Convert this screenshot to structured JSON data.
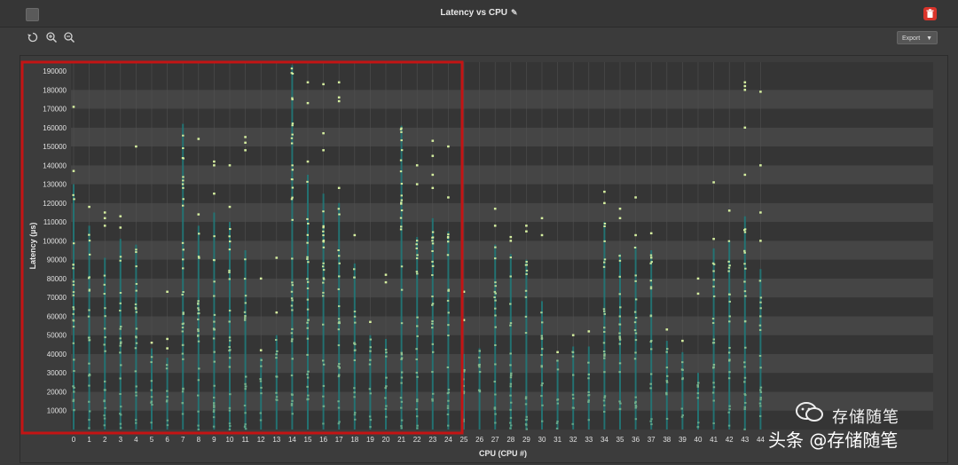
{
  "window": {
    "title": "Latency vs CPU",
    "export_label": "Export"
  },
  "icons": [
    "window-icon",
    "pencil-icon",
    "trash-icon",
    "reset-zoom-icon",
    "zoom-in-icon",
    "zoom-out-icon",
    "caret-down-icon"
  ],
  "colors": {
    "background": "#3b3b3b",
    "plot_band_dark": "#353535",
    "plot_band_light": "#454545",
    "point_low": "#1f7a7a",
    "point_high": "#d6f0a0",
    "highlight_box": "#c41414"
  },
  "watermark": {
    "line1": "存储随笔",
    "line2": "头条 @存储随笔"
  },
  "chart_data": {
    "type": "scatter",
    "xlabel": "CPU (CPU #)",
    "ylabel": "Latency (µs)",
    "xlim": [
      0,
      44
    ],
    "ylim": [
      0,
      190000
    ],
    "yticks": [
      10000,
      20000,
      30000,
      40000,
      50000,
      60000,
      70000,
      80000,
      90000,
      100000,
      110000,
      120000,
      130000,
      140000,
      150000,
      160000,
      170000,
      180000,
      190000
    ],
    "xticks": [
      0,
      1,
      2,
      3,
      4,
      5,
      6,
      7,
      8,
      9,
      10,
      11,
      12,
      13,
      14,
      15,
      16,
      17,
      18,
      19,
      20,
      21,
      22,
      23,
      24,
      25,
      26,
      27,
      28,
      29,
      30,
      31,
      32,
      33,
      34,
      35,
      36,
      37,
      38,
      39,
      40,
      41,
      42,
      43,
      44
    ],
    "highlight_range": {
      "x": [
        0,
        25
      ],
      "y": [
        0,
        190000
      ]
    },
    "series": [
      {
        "cpus": [
          {
            "cpu": 0,
            "min": 0,
            "max": 130000,
            "outliers": [
              137000,
              171000
            ]
          },
          {
            "cpu": 1,
            "min": 0,
            "max": 108000,
            "outliers": [
              118000
            ]
          },
          {
            "cpu": 2,
            "min": 0,
            "max": 91000,
            "outliers": [
              108000,
              112000,
              115000
            ]
          },
          {
            "cpu": 3,
            "min": 0,
            "max": 101000,
            "outliers": [
              107000,
              113000
            ]
          },
          {
            "cpu": 4,
            "min": 0,
            "max": 98000,
            "outliers": [
              150000
            ]
          },
          {
            "cpu": 5,
            "min": 0,
            "max": 43000,
            "outliers": [
              46000
            ]
          },
          {
            "cpu": 6,
            "min": 0,
            "max": 38000,
            "outliers": [
              43000,
              48000,
              73000
            ]
          },
          {
            "cpu": 7,
            "min": 0,
            "max": 162000,
            "outliers": []
          },
          {
            "cpu": 8,
            "min": 0,
            "max": 108000,
            "outliers": [
              114000,
              154000
            ]
          },
          {
            "cpu": 9,
            "min": 0,
            "max": 115000,
            "outliers": [
              125000,
              140000,
              142000
            ]
          },
          {
            "cpu": 10,
            "min": 0,
            "max": 110000,
            "outliers": [
              118000,
              140000
            ]
          },
          {
            "cpu": 11,
            "min": 0,
            "max": 95000,
            "outliers": [
              148000,
              152000,
              155000
            ]
          },
          {
            "cpu": 12,
            "min": 0,
            "max": 38000,
            "outliers": [
              42000,
              80000
            ]
          },
          {
            "cpu": 13,
            "min": 0,
            "max": 50000,
            "outliers": [
              62000,
              91000
            ]
          },
          {
            "cpu": 14,
            "min": 0,
            "max": 193000,
            "outliers": []
          },
          {
            "cpu": 15,
            "min": 0,
            "max": 135000,
            "outliers": [
              142000,
              173000,
              184000
            ]
          },
          {
            "cpu": 16,
            "min": 0,
            "max": 125000,
            "outliers": [
              148000,
              157000,
              183000
            ]
          },
          {
            "cpu": 17,
            "min": 0,
            "max": 120000,
            "outliers": [
              128000,
              174000,
              176000,
              184000
            ]
          },
          {
            "cpu": 18,
            "min": 0,
            "max": 88000,
            "outliers": [
              103000
            ]
          },
          {
            "cpu": 19,
            "min": 0,
            "max": 50000,
            "outliers": [
              57000
            ]
          },
          {
            "cpu": 20,
            "min": 0,
            "max": 48000,
            "outliers": [
              78000,
              82000
            ]
          },
          {
            "cpu": 21,
            "min": 0,
            "max": 161000,
            "outliers": []
          },
          {
            "cpu": 22,
            "min": 0,
            "max": 102000,
            "outliers": [
              130000,
              140000
            ]
          },
          {
            "cpu": 23,
            "min": 0,
            "max": 112000,
            "outliers": [
              128000,
              135000,
              145000,
              153000
            ]
          },
          {
            "cpu": 24,
            "min": 0,
            "max": 105000,
            "outliers": [
              123000,
              150000
            ]
          },
          {
            "cpu": 25,
            "min": 0,
            "max": 40000,
            "outliers": [
              58000,
              73000
            ]
          },
          {
            "cpu": 26,
            "min": 0,
            "max": 43000,
            "outliers": []
          },
          {
            "cpu": 27,
            "min": 0,
            "max": 98000,
            "outliers": [
              108000,
              117000
            ]
          },
          {
            "cpu": 28,
            "min": 0,
            "max": 93000,
            "outliers": [
              100000,
              102000
            ]
          },
          {
            "cpu": 29,
            "min": 0,
            "max": 90000,
            "outliers": [
              105000,
              108000
            ]
          },
          {
            "cpu": 30,
            "min": 0,
            "max": 68000,
            "outliers": [
              103000,
              112000
            ]
          },
          {
            "cpu": 31,
            "min": 0,
            "max": 37000,
            "outliers": [
              41000
            ]
          },
          {
            "cpu": 32,
            "min": 0,
            "max": 44000,
            "outliers": [
              50000
            ]
          },
          {
            "cpu": 33,
            "min": 0,
            "max": 44000,
            "outliers": [
              52000
            ]
          },
          {
            "cpu": 34,
            "min": 0,
            "max": 110000,
            "outliers": [
              120000,
              126000
            ]
          },
          {
            "cpu": 35,
            "min": 0,
            "max": 93000,
            "outliers": [
              112000,
              117000
            ]
          },
          {
            "cpu": 36,
            "min": 0,
            "max": 97000,
            "outliers": [
              103000,
              123000
            ]
          },
          {
            "cpu": 37,
            "min": 0,
            "max": 95000,
            "outliers": [
              104000
            ]
          },
          {
            "cpu": 38,
            "min": 0,
            "max": 47000,
            "outliers": [
              53000
            ]
          },
          {
            "cpu": 39,
            "min": 0,
            "max": 41000,
            "outliers": [
              47000
            ]
          },
          {
            "cpu": 40,
            "min": 0,
            "max": 30000,
            "outliers": [
              72000,
              80000
            ]
          },
          {
            "cpu": 41,
            "min": 0,
            "max": 96000,
            "outliers": [
              101000,
              131000
            ]
          },
          {
            "cpu": 42,
            "min": 0,
            "max": 100000,
            "outliers": [
              116000
            ]
          },
          {
            "cpu": 43,
            "min": 0,
            "max": 113000,
            "outliers": [
              135000,
              160000,
              180000,
              182000,
              184000
            ]
          },
          {
            "cpu": 44,
            "min": 0,
            "max": 85000,
            "outliers": [
              100000,
              115000,
              140000,
              179000
            ]
          }
        ]
      }
    ]
  }
}
